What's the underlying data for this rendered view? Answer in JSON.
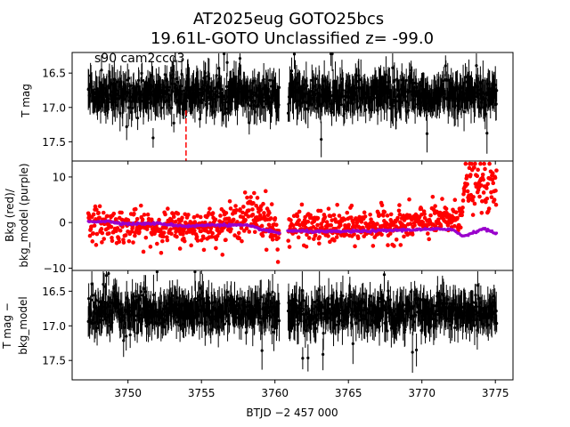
{
  "title_line1": "AT2025eug  GOTO25bcs",
  "title_line2": "19.61L-GOTO Unclassified z= -99.0",
  "annotation": "s90 cam2ccd3",
  "xlabel": "BTJD −2 457 000",
  "colors": {
    "points": "#000000",
    "bkg": "#ff0000",
    "model": "#9900cc",
    "marker": "#ff0000"
  },
  "chart_data": [
    {
      "type": "scatter",
      "panel": "top",
      "ylabel": "T mag",
      "y_inverted": true,
      "xlim": [
        3746.2,
        3776.2
      ],
      "ylim": [
        17.78,
        16.2
      ],
      "xticks": [
        3750,
        3755,
        3760,
        3765,
        3770,
        3775
      ],
      "yticks": [
        "16.5",
        "17.0",
        "17.5"
      ],
      "ytick_values": [
        16.5,
        17.0,
        17.5
      ],
      "segments": [
        [
          3747.3,
          3760.3
        ],
        [
          3760.9,
          3775.1
        ]
      ],
      "band": [
        16.45,
        17.15
      ],
      "vline_x": 3753.95,
      "series": [
        {
          "values_range": [
            16.2,
            17.75
          ]
        }
      ]
    },
    {
      "type": "scatter",
      "panel": "middle",
      "ylabel_line1": "Bkg (red)/",
      "ylabel_line2": "bkg_model (purple)",
      "xlim": [
        3746.2,
        3776.2
      ],
      "ylim": [
        -10.5,
        13.5
      ],
      "yticks": [
        "−10",
        "0",
        "10"
      ],
      "ytick_values": [
        -10,
        0,
        10
      ],
      "series": [
        {
          "values": [
            [
              3747.3,
              0
            ],
            [
              3750,
              -1
            ],
            [
              3755,
              -1
            ],
            [
              3757,
              0
            ],
            [
              3758.5,
              2
            ],
            [
              3759.5,
              1
            ],
            [
              3760.3,
              -4
            ],
            [
              3761,
              -1
            ],
            [
              3765,
              -1
            ],
            [
              3770,
              0
            ],
            [
              3772.5,
              1
            ],
            [
              3773,
              8
            ],
            [
              3774,
              8
            ],
            [
              3775.1,
              7
            ]
          ]
        },
        {
          "values": [
            [
              3747.3,
              0.2
            ],
            [
              3748.5,
              0.3
            ],
            [
              3750,
              -0.3
            ],
            [
              3752,
              -0.2
            ],
            [
              3754,
              -0.8
            ],
            [
              3756,
              -0.5
            ],
            [
              3758,
              -0.6
            ],
            [
              3759.5,
              -1.8
            ],
            [
              3760.3,
              -2.3
            ],
            [
              3760.9,
              -1.8
            ],
            [
              3763,
              -2.0
            ],
            [
              3766,
              -1.9
            ],
            [
              3769,
              -1.6
            ],
            [
              3772,
              -1.4
            ],
            [
              3772.8,
              -3.0
            ],
            [
              3773.5,
              -2.2
            ],
            [
              3774.2,
              -1.3
            ],
            [
              3775.1,
              -2.5
            ]
          ]
        }
      ]
    },
    {
      "type": "scatter",
      "panel": "bottom",
      "ylabel_line1": "T mag −",
      "ylabel_line2": "bkg_model",
      "y_inverted": true,
      "xlim": [
        3746.2,
        3776.2
      ],
      "ylim": [
        17.78,
        16.2
      ],
      "yticks": [
        "16.5",
        "17.0",
        "17.5"
      ],
      "ytick_values": [
        16.5,
        17.0,
        17.5
      ],
      "xticklabels": [
        "3750",
        "3755",
        "3760",
        "3765",
        "3770",
        "3775"
      ],
      "segments": [
        [
          3747.3,
          3760.3
        ],
        [
          3760.9,
          3775.1
        ]
      ],
      "band": [
        16.45,
        17.15
      ],
      "series": [
        {
          "values_range": [
            16.2,
            17.75
          ]
        }
      ]
    }
  ]
}
